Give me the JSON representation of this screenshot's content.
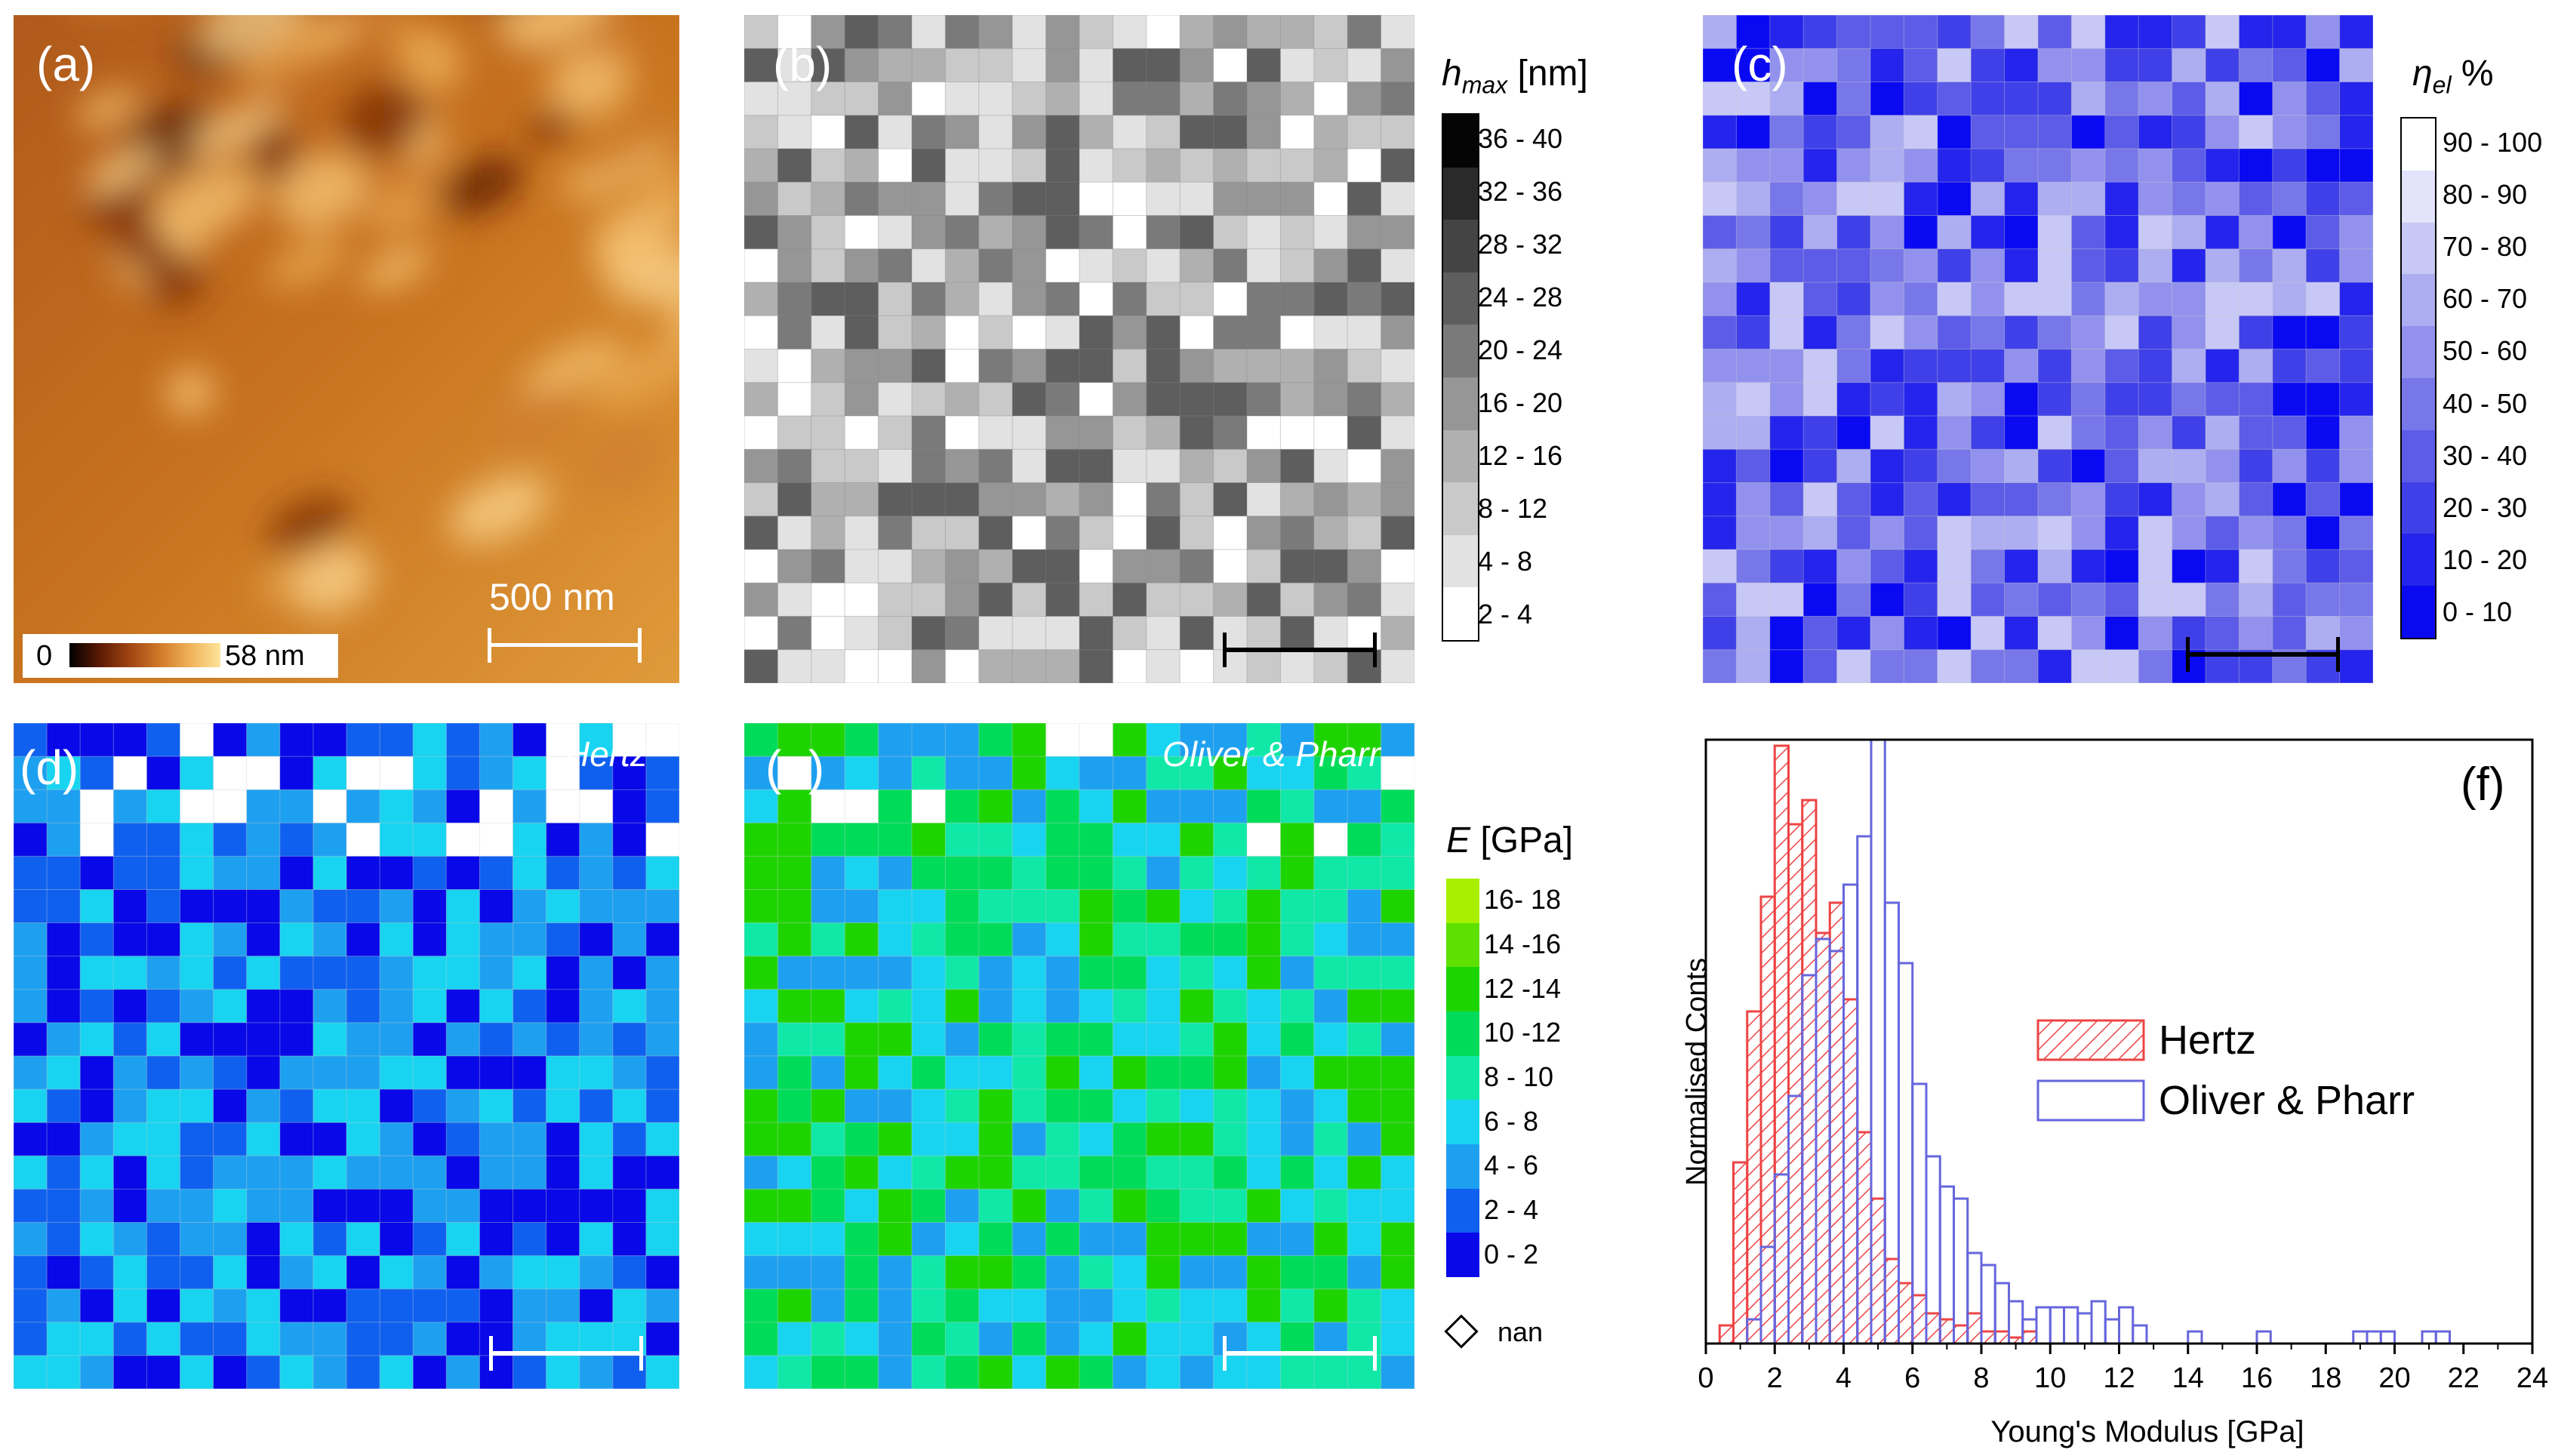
{
  "panels": {
    "a": {
      "label": "(a)",
      "scalebar_label": "500 nm",
      "colorbar_min": "0",
      "colorbar_max": "58 nm"
    },
    "b": {
      "label": "(b)"
    },
    "c": {
      "label": "(c)"
    },
    "d": {
      "label": "(d)",
      "title": "Hertz"
    },
    "e": {
      "label": "(e)",
      "title": "Oliver & Pharr"
    },
    "f": {
      "label": "(f)"
    }
  },
  "colorbars": {
    "hmax": {
      "title_main": "h",
      "title_sub": "max",
      "title_unit": " [nm]",
      "ranges": [
        "36 - 40",
        "32 - 36",
        "28 - 32",
        "24 - 28",
        "20 - 24",
        "16 - 20",
        "12 - 16",
        "8 - 12",
        "4 - 8",
        "2 - 4"
      ],
      "colors": [
        "#050505",
        "#2a2a2a",
        "#444444",
        "#5e5e5e",
        "#7a7a7a",
        "#969696",
        "#b0b0b0",
        "#c9c9c9",
        "#e2e2e2",
        "#ffffff"
      ]
    },
    "eta": {
      "title_main": "η",
      "title_sub": "el",
      "title_unit": " %",
      "ranges": [
        "90 - 100",
        "80 - 90",
        "70 - 80",
        "60 - 70",
        "50 - 60",
        "40 - 50",
        "30 - 40",
        "20 - 30",
        "10 - 20",
        "0 - 10"
      ],
      "colors": [
        "#ffffff",
        "#e3e3fb",
        "#c8c8f6",
        "#adadf2",
        "#9292ee",
        "#7777ea",
        "#5c5ce8",
        "#4040e8",
        "#2424ec",
        "#0a0af2"
      ]
    },
    "E": {
      "title_main": "E",
      "title_unit": " [GPa]",
      "ranges": [
        "16- 18",
        "14 -16",
        "12 -14",
        "10 -12",
        "8 - 10",
        "6 - 8",
        "4 - 6",
        "2 - 4",
        "0 - 2"
      ],
      "colors": [
        "#a8f000",
        "#5ee000",
        "#1ed400",
        "#00dc5a",
        "#10e8a8",
        "#18d4f0",
        "#1ea0f0",
        "#1060f0",
        "#0808e8"
      ],
      "nan_label": "nan"
    }
  },
  "chart_data": {
    "type": "bar",
    "title": "",
    "xlabel": "Young's Modulus [GPa]",
    "ylabel": "Normalised Conts",
    "xlim": [
      0,
      24
    ],
    "xticks": [
      0,
      2,
      4,
      6,
      8,
      10,
      12,
      14,
      16,
      18,
      20,
      22,
      24
    ],
    "ylim": [
      0,
      1
    ],
    "bin_width": 0.4,
    "legend_position": "center-right",
    "series": [
      {
        "name": "Hertz",
        "style": "hatched",
        "color": "#ee4444",
        "bin_starts": [
          0.4,
          0.8,
          1.2,
          1.6,
          2.0,
          2.4,
          2.8,
          3.2,
          3.6,
          4.0,
          4.4,
          4.8,
          5.2,
          5.6,
          6.0,
          6.4,
          6.8,
          7.2,
          7.6,
          8.0,
          8.4,
          8.8,
          9.2
        ],
        "values": [
          0.03,
          0.3,
          0.55,
          0.74,
          0.99,
          0.86,
          0.9,
          0.68,
          0.73,
          0.57,
          0.35,
          0.24,
          0.14,
          0.1,
          0.08,
          0.05,
          0.04,
          0.03,
          0.05,
          0.02,
          0.02,
          0.01,
          0.02
        ]
      },
      {
        "name": "Oliver & Pharr",
        "style": "outline",
        "color": "#6666dd",
        "bin_starts": [
          1.2,
          1.6,
          2.0,
          2.4,
          2.8,
          3.2,
          3.6,
          4.0,
          4.4,
          4.8,
          5.2,
          5.6,
          6.0,
          6.4,
          6.8,
          7.2,
          7.6,
          8.0,
          8.4,
          8.8,
          9.2,
          9.6,
          10.0,
          10.4,
          10.8,
          11.2,
          11.6,
          12.0,
          12.4,
          14.0,
          16.0,
          18.8,
          19.2,
          19.6,
          20.8,
          21.2
        ],
        "values": [
          0.04,
          0.16,
          0.28,
          0.41,
          0.61,
          0.67,
          0.65,
          0.76,
          0.84,
          1.0,
          0.73,
          0.63,
          0.43,
          0.31,
          0.26,
          0.24,
          0.15,
          0.13,
          0.1,
          0.07,
          0.04,
          0.06,
          0.06,
          0.06,
          0.05,
          0.07,
          0.04,
          0.06,
          0.03,
          0.02,
          0.02,
          0.02,
          0.02,
          0.02,
          0.02,
          0.02
        ]
      }
    ]
  }
}
